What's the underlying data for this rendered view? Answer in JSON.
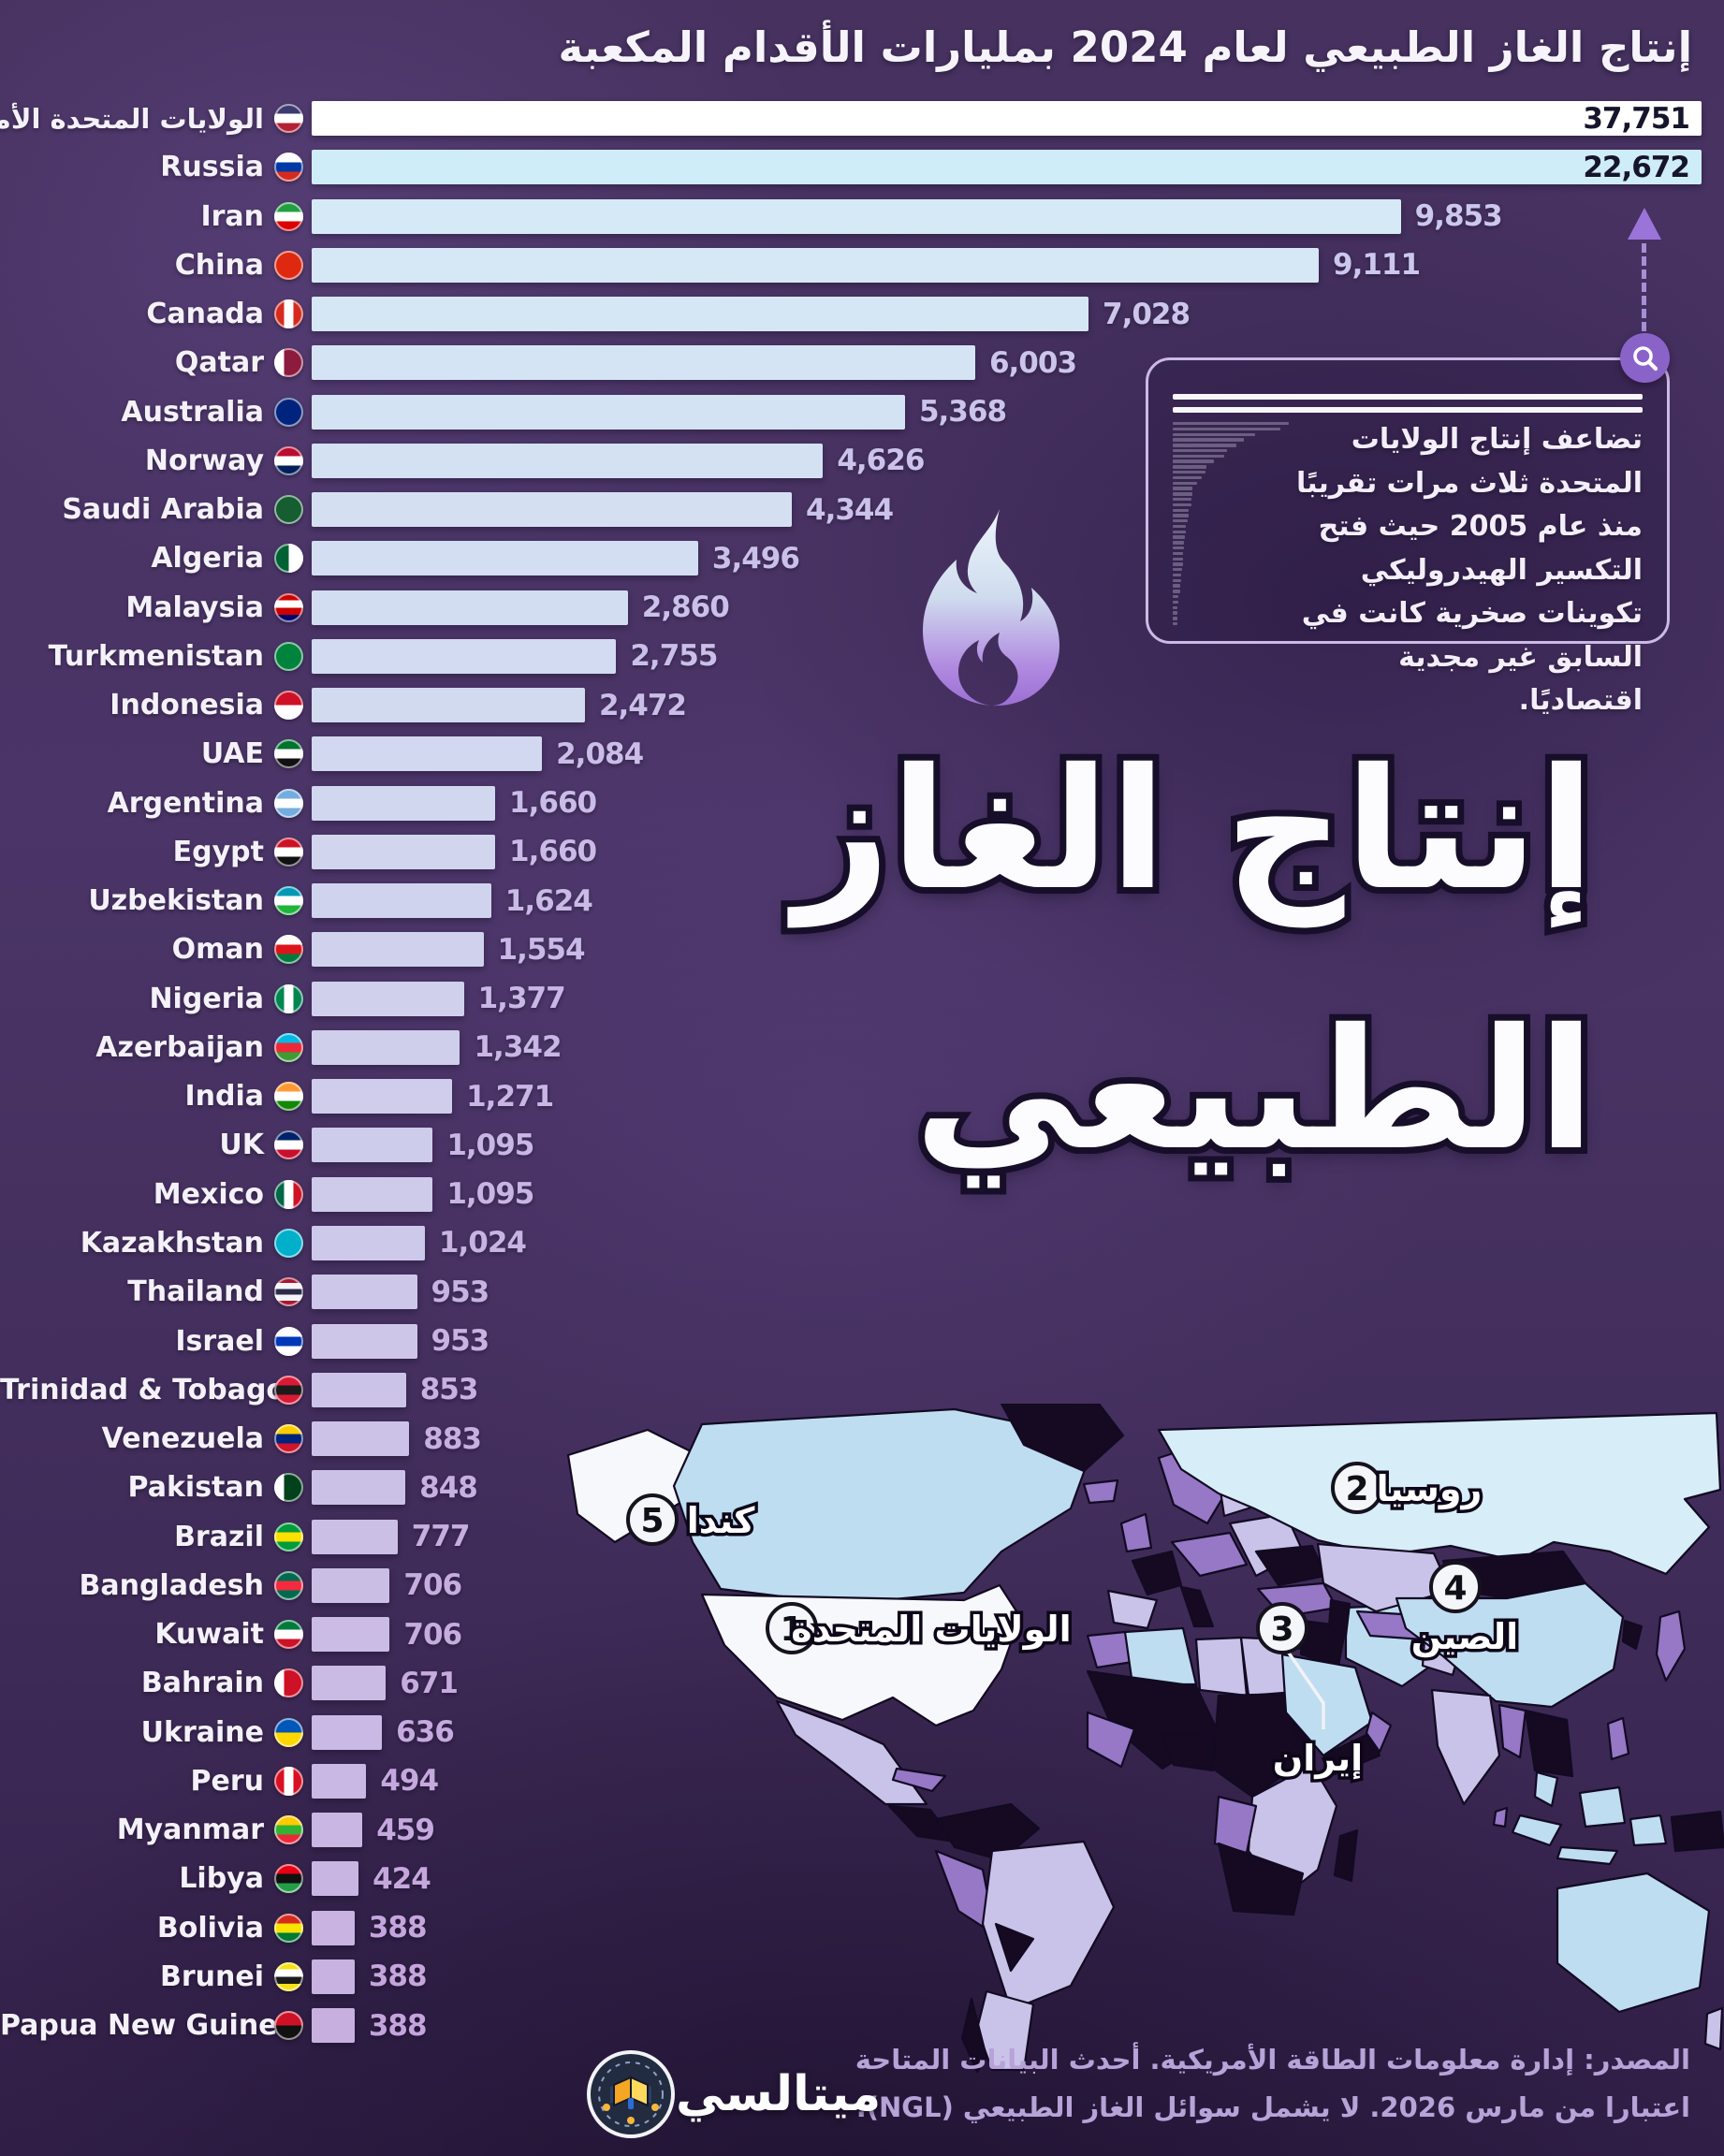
{
  "header": {
    "title": "إنتاج الغاز الطبيعي لعام 2024 بمليارات الأقدام المكعبة"
  },
  "hero": {
    "line1": "إنتاج الغاز",
    "line2": "الطبيعي"
  },
  "chart_data": {
    "type": "bar",
    "orientation": "horizontal",
    "title": "إنتاج الغاز الطبيعي لعام 2024 بمليارات الأقدام المكعبة",
    "unit": "مليار قدم مكعبة",
    "year": "2024",
    "note": "top two bars are clipped to chart width",
    "categories": [
      "الولايات المتحدة الأمريكية",
      "Russia",
      "Iran",
      "China",
      "Canada",
      "Qatar",
      "Australia",
      "Norway",
      "Saudi Arabia",
      "Algeria",
      "Malaysia",
      "Turkmenistan",
      "Indonesia",
      "UAE",
      "Argentina",
      "Egypt",
      "Uzbekistan",
      "Oman",
      "Nigeria",
      "Azerbaijan",
      "India",
      "UK",
      "Mexico",
      "Kazakhstan",
      "Thailand",
      "Israel",
      "Trinidad & Tobago",
      "Venezuela",
      "Pakistan",
      "Brazil",
      "Bangladesh",
      "Kuwait",
      "Bahrain",
      "Ukraine",
      "Peru",
      "Myanmar",
      "Libya",
      "Bolivia",
      "Brunei",
      "Papua New Guinea"
    ],
    "values": [
      37751,
      22672,
      9853,
      9111,
      7028,
      6003,
      5368,
      4626,
      4344,
      3496,
      2860,
      2755,
      2472,
      2084,
      1660,
      1660,
      1624,
      1554,
      1377,
      1342,
      1271,
      1095,
      1095,
      1024,
      953,
      953,
      853,
      883,
      848,
      777,
      706,
      706,
      671,
      636,
      494,
      459,
      424,
      388,
      388,
      388
    ],
    "value_labels": [
      "37,751",
      "22,672",
      "9,853",
      "9,111",
      "7,028",
      "6,003",
      "5,368",
      "4,626",
      "4,344",
      "3,496",
      "2,860",
      "2,755",
      "2,472",
      "2,084",
      "1,660",
      "1,660",
      "1,624",
      "1,554",
      "1,377",
      "1,342",
      "1,271",
      "1,095",
      "1,095",
      "1,024",
      "953",
      "953",
      "853",
      "883",
      "848",
      "777",
      "706",
      "706",
      "671",
      "636",
      "494",
      "459",
      "424",
      "388",
      "388",
      "388"
    ],
    "flags": [
      {
        "dir": "h",
        "colors": [
          "#3c3b6e",
          "#ffffff",
          "#b22234"
        ]
      },
      {
        "dir": "h",
        "colors": [
          "#ffffff",
          "#0039a6",
          "#d52b1e"
        ]
      },
      {
        "dir": "h",
        "colors": [
          "#239f40",
          "#ffffff",
          "#da0000"
        ]
      },
      {
        "dir": "h",
        "colors": [
          "#de2910"
        ]
      },
      {
        "dir": "v",
        "colors": [
          "#d52b1e",
          "#ffffff",
          "#d52b1e"
        ]
      },
      {
        "dir": "v",
        "colors": [
          "#ffffff",
          "#8d1b3d",
          "#8d1b3d"
        ]
      },
      {
        "dir": "h",
        "colors": [
          "#00247d"
        ]
      },
      {
        "dir": "h",
        "colors": [
          "#ba0c2f",
          "#ffffff",
          "#00205b"
        ]
      },
      {
        "dir": "h",
        "colors": [
          "#165d31"
        ]
      },
      {
        "dir": "v",
        "colors": [
          "#006233",
          "#ffffff"
        ]
      },
      {
        "dir": "h",
        "colors": [
          "#cc0001",
          "#ffffff",
          "#cc0001",
          "#010066"
        ]
      },
      {
        "dir": "h",
        "colors": [
          "#00843d"
        ]
      },
      {
        "dir": "h",
        "colors": [
          "#ce1126",
          "#ffffff"
        ]
      },
      {
        "dir": "h",
        "colors": [
          "#00732f",
          "#ffffff",
          "#111111"
        ]
      },
      {
        "dir": "h",
        "colors": [
          "#74acdf",
          "#ffffff",
          "#74acdf"
        ]
      },
      {
        "dir": "h",
        "colors": [
          "#ce1126",
          "#ffffff",
          "#111111"
        ]
      },
      {
        "dir": "h",
        "colors": [
          "#0099b5",
          "#ffffff",
          "#1eb53a"
        ]
      },
      {
        "dir": "h",
        "colors": [
          "#ffffff",
          "#db161b",
          "#007a3d"
        ]
      },
      {
        "dir": "v",
        "colors": [
          "#008751",
          "#ffffff",
          "#008751"
        ]
      },
      {
        "dir": "h",
        "colors": [
          "#00b9e4",
          "#ed2939",
          "#3f9c35"
        ]
      },
      {
        "dir": "h",
        "colors": [
          "#ff9933",
          "#ffffff",
          "#138808"
        ]
      },
      {
        "dir": "h",
        "colors": [
          "#012169",
          "#ffffff",
          "#c8102e"
        ]
      },
      {
        "dir": "v",
        "colors": [
          "#006847",
          "#ffffff",
          "#ce1126"
        ]
      },
      {
        "dir": "h",
        "colors": [
          "#00afca"
        ]
      },
      {
        "dir": "h",
        "colors": [
          "#a51931",
          "#f4f5f8",
          "#2d2a4a",
          "#f4f5f8",
          "#a51931"
        ]
      },
      {
        "dir": "h",
        "colors": [
          "#ffffff",
          "#0038b8",
          "#ffffff"
        ]
      },
      {
        "dir": "h",
        "colors": [
          "#da1a35",
          "#1b1b1b",
          "#da1a35"
        ]
      },
      {
        "dir": "h",
        "colors": [
          "#ffcc00",
          "#00247d",
          "#cf142b"
        ]
      },
      {
        "dir": "v",
        "colors": [
          "#ffffff",
          "#01411c",
          "#01411c"
        ]
      },
      {
        "dir": "h",
        "colors": [
          "#009c3b",
          "#ffdf00",
          "#009c3b"
        ]
      },
      {
        "dir": "h",
        "colors": [
          "#006a4e",
          "#f42a41",
          "#006a4e"
        ]
      },
      {
        "dir": "h",
        "colors": [
          "#007a3d",
          "#ffffff",
          "#ce1126"
        ]
      },
      {
        "dir": "v",
        "colors": [
          "#ffffff",
          "#ce1126",
          "#ce1126"
        ]
      },
      {
        "dir": "h",
        "colors": [
          "#0057b7",
          "#ffd700"
        ]
      },
      {
        "dir": "v",
        "colors": [
          "#d91023",
          "#ffffff",
          "#d91023"
        ]
      },
      {
        "dir": "h",
        "colors": [
          "#fecb00",
          "#34b233",
          "#ea2839"
        ]
      },
      {
        "dir": "h",
        "colors": [
          "#e70013",
          "#111111",
          "#239e46"
        ]
      },
      {
        "dir": "h",
        "colors": [
          "#d52b1e",
          "#f9e300",
          "#007934"
        ]
      },
      {
        "dir": "h",
        "colors": [
          "#f7e017",
          "#ffffff",
          "#1b1b1b",
          "#f7e017"
        ]
      },
      {
        "dir": "h",
        "colors": [
          "#ce1126",
          "#111111"
        ]
      }
    ]
  },
  "annotation": {
    "text": "تضاعف إنتاج الولايات المتحدة ثلاث مرات تقريبًا منذ عام 2005 حيث فتح التكسير الهيدروليكي تكوينات صخرية كانت في السابق غير مجدية اقتصاديًا."
  },
  "map": {
    "markers": [
      {
        "number": "1",
        "label": "الولايات المتحدة"
      },
      {
        "number": "2",
        "label": "روسيا"
      },
      {
        "number": "3",
        "label": "إيران"
      },
      {
        "number": "4",
        "label": "الصين"
      },
      {
        "number": "5",
        "label": "كندا"
      }
    ]
  },
  "source": {
    "line1": "المصدر: إدارة معلومات الطاقة الأمريكية. أحدث البيانات المتاحة",
    "line2": "اعتبارا من مارس 2026. لا يشمل سوائل الغاز الطبيعي (NGL)."
  },
  "logo": {
    "name": "ميتالسي"
  },
  "colors": {
    "background": "#46315f",
    "bar_first": "#ffffff",
    "bar_second": "#cfecf9",
    "bar_grad_start": "#d6e9f6",
    "bar_grad_end": "#c7b0e0",
    "value_text_start": "#ccc8ec",
    "value_text_end": "#c4a4dc",
    "value_text_dark": "#15152b",
    "accent_purple": "#8a63c9",
    "box_border": "#cbb9e6",
    "title_text": "#f6f3fa",
    "source_text": "#b7a3d8",
    "map_palette": {
      "blue1": "#d7edf8",
      "blue2": "#bfddf1",
      "white": "#f7f8fb",
      "lavender": "#c9c3e9",
      "purple": "#9678c6",
      "black": "#150a21",
      "stroke": "#120a22"
    }
  }
}
